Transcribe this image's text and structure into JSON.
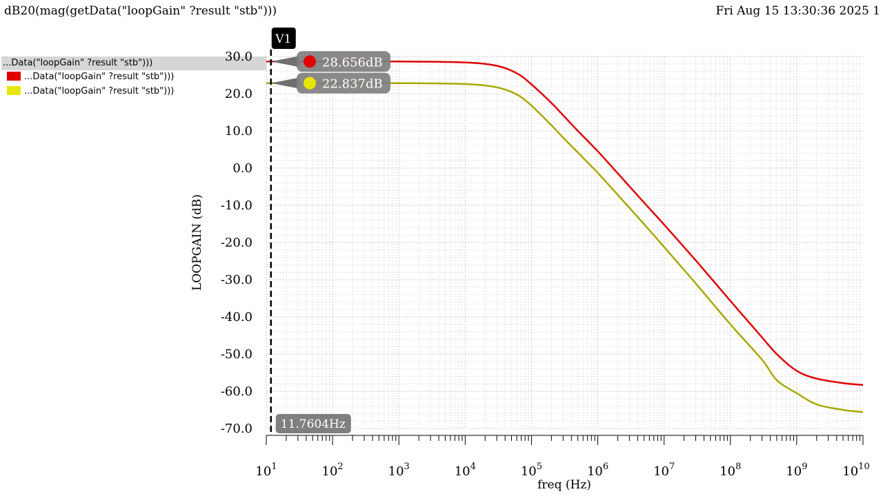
{
  "header": {
    "title": "dB20(mag(getData(\"loopGain\" ?result \"stb\")))",
    "datestamp": "Fri Aug 15 13:30:36 2025  1"
  },
  "legend": {
    "heading": "...Data(\"loopGain\" ?result \"stb\")))",
    "items": [
      {
        "label": "...Data(\"loopGain\" ?result \"stb\")))",
        "color": "#e00000"
      },
      {
        "label": "...Data(\"loopGain\" ?result \"stb\")))",
        "color": "#e6e600"
      }
    ]
  },
  "markers": {
    "vertical": {
      "name": "V1",
      "x_value": 11.7604,
      "x_label": "11.7604Hz"
    },
    "points": [
      {
        "series": 0,
        "label": "28.656dB",
        "value": 28.656,
        "dot_color": "#e00000"
      },
      {
        "series": 1,
        "label": "22.837dB",
        "value": 22.837,
        "dot_color": "#e6e600"
      }
    ]
  },
  "chart_data": {
    "type": "line",
    "xscale": "log",
    "xlabel": "freq (Hz)",
    "ylabel": "LOOPGAIN (dB)",
    "xlim": [
      10,
      10000000000
    ],
    "ylim": [
      -70,
      30
    ],
    "x_ticks": [
      {
        "base": "10",
        "exp": "1",
        "value": 10
      },
      {
        "base": "10",
        "exp": "2",
        "value": 100
      },
      {
        "base": "10",
        "exp": "3",
        "value": 1000
      },
      {
        "base": "10",
        "exp": "4",
        "value": 10000
      },
      {
        "base": "10",
        "exp": "5",
        "value": 100000
      },
      {
        "base": "10",
        "exp": "6",
        "value": 1000000
      },
      {
        "base": "10",
        "exp": "7",
        "value": 10000000
      },
      {
        "base": "10",
        "exp": "8",
        "value": 100000000
      },
      {
        "base": "10",
        "exp": "9",
        "value": 1000000000
      },
      {
        "base": "10",
        "exp": "10",
        "value": 10000000000
      }
    ],
    "y_ticks": [
      {
        "label": "30.0",
        "value": 30
      },
      {
        "label": "20.0",
        "value": 20
      },
      {
        "label": "10.0",
        "value": 10
      },
      {
        "label": "0.0",
        "value": 0
      },
      {
        "label": "-10.0",
        "value": -10
      },
      {
        "label": "-20.0",
        "value": -20
      },
      {
        "label": "-30.0",
        "value": -30
      },
      {
        "label": "-40.0",
        "value": -40
      },
      {
        "label": "-50.0",
        "value": -50
      },
      {
        "label": "-60.0",
        "value": -60
      },
      {
        "label": "-70.0",
        "value": -70
      }
    ],
    "grid": true,
    "series": [
      {
        "color": "#e00000",
        "x": [
          10,
          100,
          1000,
          10000,
          30000,
          60000,
          100000,
          200000,
          300000,
          500000,
          1000000,
          2000000,
          5000000,
          10000000,
          30000000,
          100000000,
          300000000,
          500000000,
          1000000000,
          2000000000,
          5000000000,
          10000000000
        ],
        "y": [
          28.66,
          28.66,
          28.65,
          28.4,
          27.5,
          25.5,
          22.5,
          17.5,
          14.2,
          10.0,
          4.5,
          -1.4,
          -9.3,
          -15.2,
          -24.8,
          -35.7,
          -45.5,
          -50.0,
          -54.5,
          -56.6,
          -57.8,
          -58.3
        ]
      },
      {
        "color": "#a8a800",
        "x": [
          10,
          100,
          1000,
          10000,
          30000,
          60000,
          100000,
          200000,
          300000,
          500000,
          1000000,
          2000000,
          5000000,
          10000000,
          30000000,
          100000000,
          300000000,
          500000000,
          1000000000,
          2000000000,
          5000000000,
          10000000000
        ],
        "y": [
          22.84,
          22.84,
          22.83,
          22.6,
          21.7,
          19.8,
          16.8,
          11.5,
          8.2,
          4.2,
          -1.3,
          -7.2,
          -15.1,
          -21.2,
          -31.0,
          -42.0,
          -51.5,
          -57.0,
          -60.5,
          -63.5,
          -65.0,
          -65.6
        ]
      }
    ]
  }
}
